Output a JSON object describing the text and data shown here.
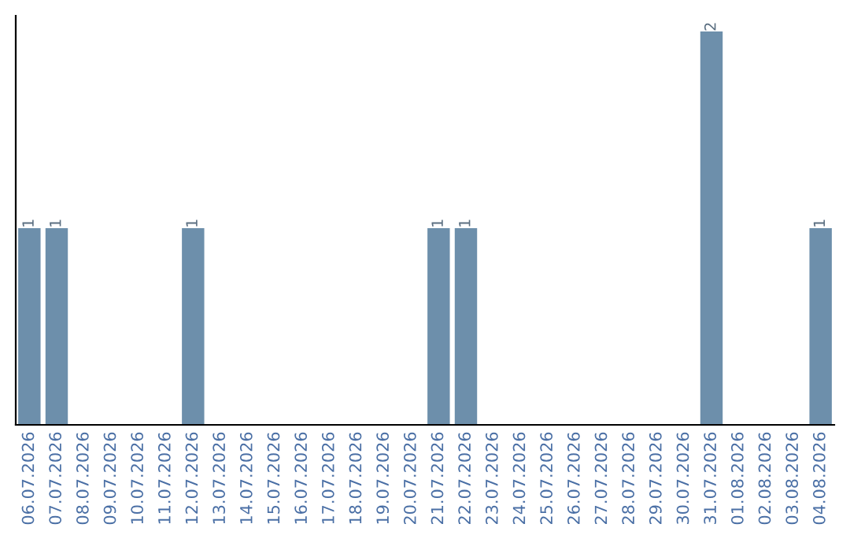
{
  "chart_data": {
    "type": "bar",
    "categories": [
      "06.07.2026",
      "07.07.2026",
      "08.07.2026",
      "09.07.2026",
      "10.07.2026",
      "11.07.2026",
      "12.07.2026",
      "13.07.2026",
      "14.07.2026",
      "15.07.2026",
      "16.07.2026",
      "17.07.2026",
      "18.07.2026",
      "19.07.2026",
      "20.07.2026",
      "21.07.2026",
      "22.07.2026",
      "23.07.2026",
      "24.07.2026",
      "25.07.2026",
      "26.07.2026",
      "27.07.2026",
      "28.07.2026",
      "29.07.2026",
      "30.07.2026",
      "31.07.2026",
      "01.08.2026",
      "02.08.2026",
      "03.08.2026",
      "04.08.2026"
    ],
    "values": [
      1,
      1,
      0,
      0,
      0,
      0,
      1,
      0,
      0,
      0,
      0,
      0,
      0,
      0,
      0,
      1,
      1,
      0,
      0,
      0,
      0,
      0,
      0,
      0,
      0,
      2,
      0,
      0,
      0,
      1
    ],
    "value_labels": [
      "1",
      "1",
      null,
      null,
      null,
      null,
      "1",
      null,
      null,
      null,
      null,
      null,
      null,
      null,
      null,
      "1",
      "1",
      null,
      null,
      null,
      null,
      null,
      null,
      null,
      null,
      "2",
      null,
      null,
      null,
      "1"
    ],
    "color": "#6d8fab",
    "grid": false,
    "legend": false
  }
}
